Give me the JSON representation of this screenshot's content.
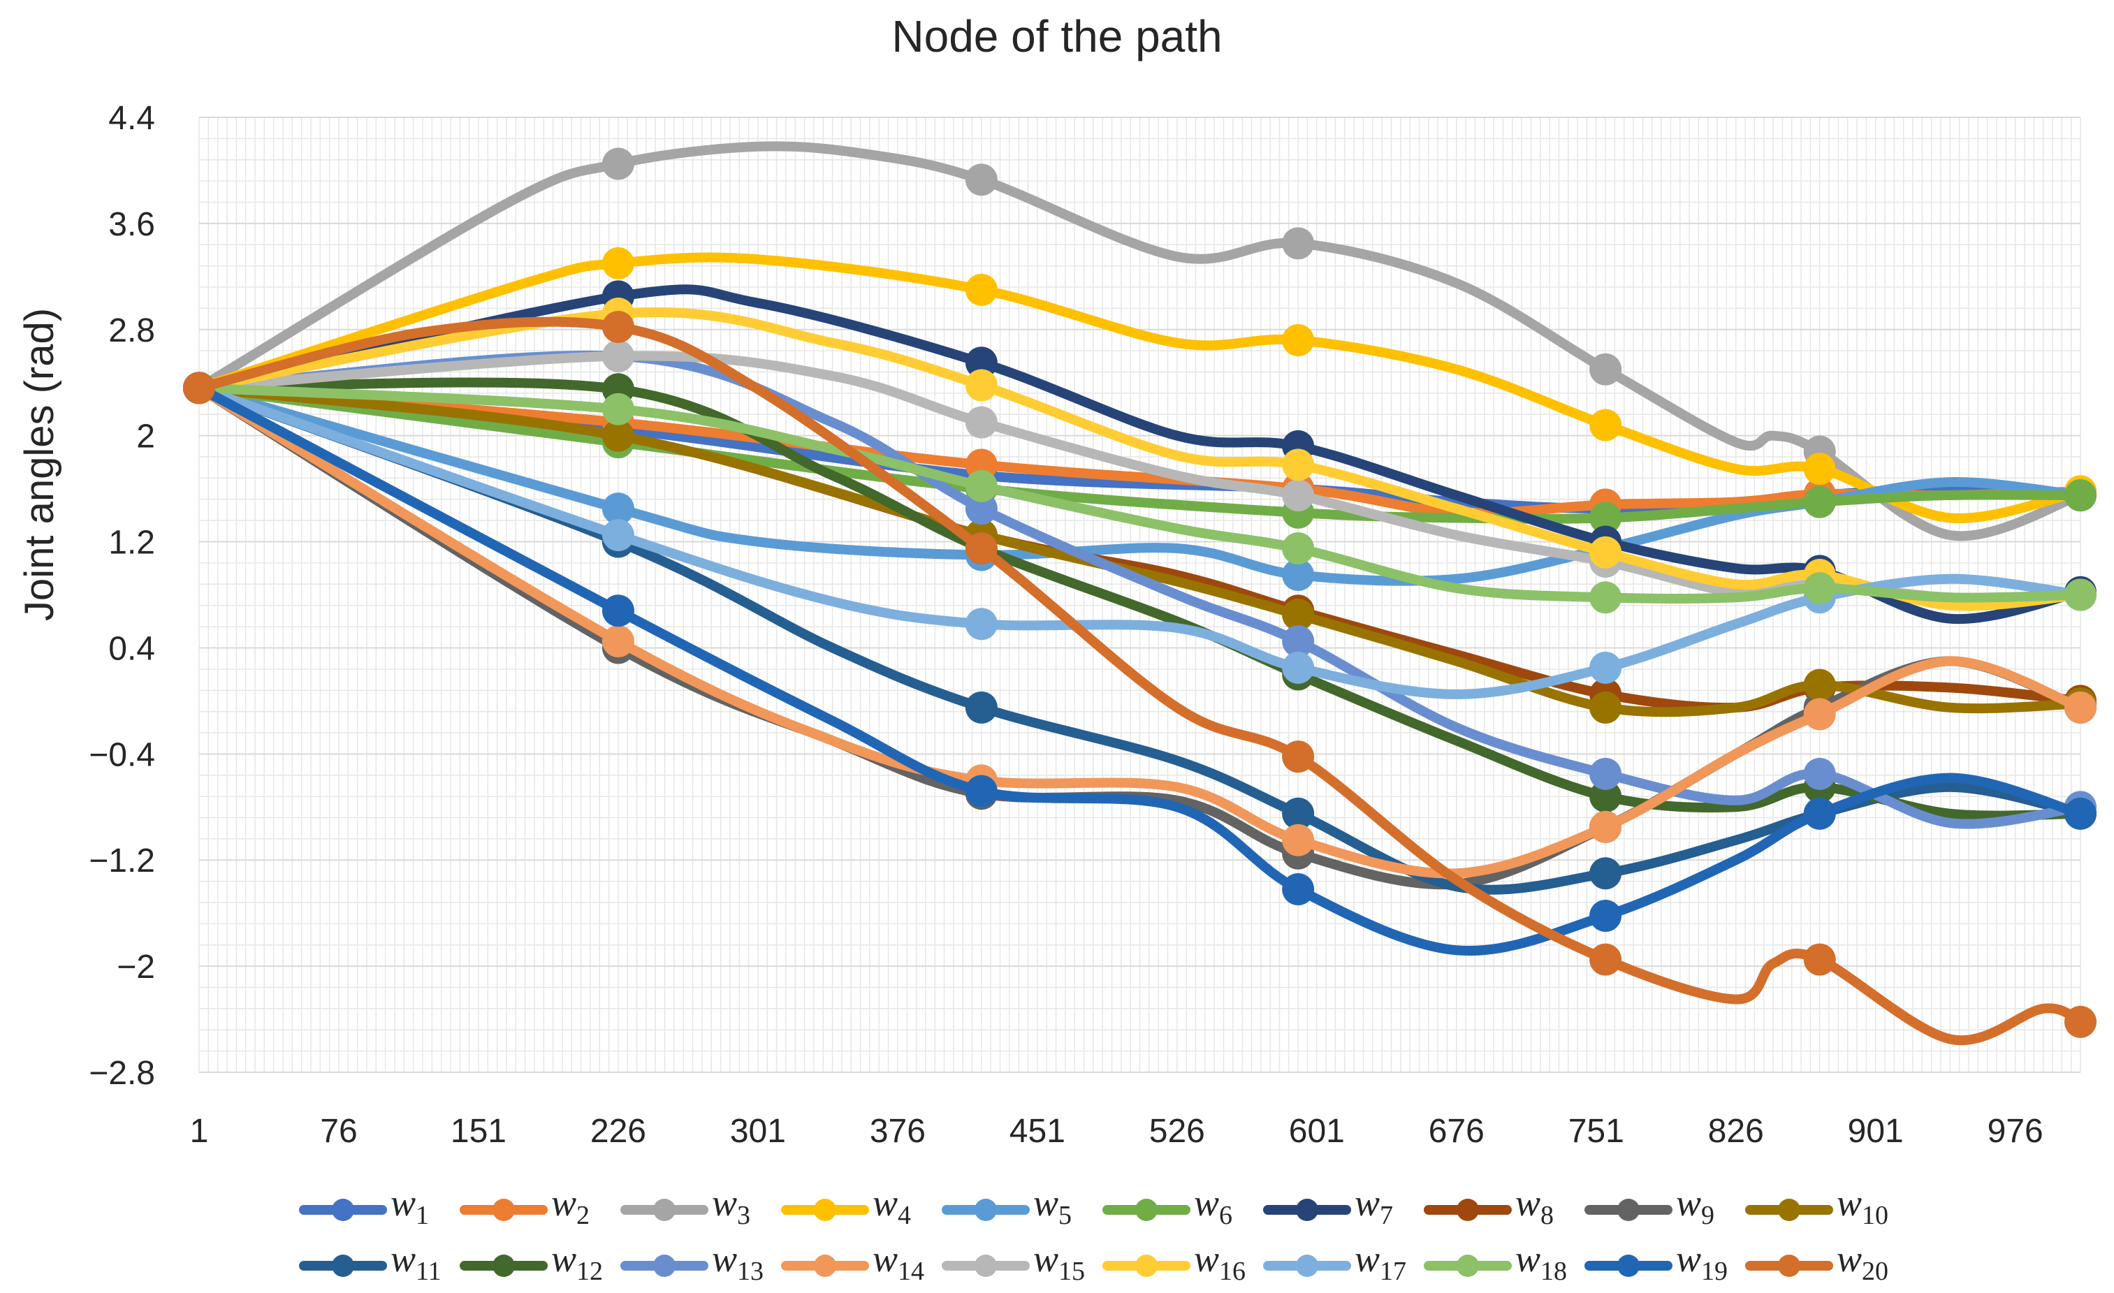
{
  "chart_data": {
    "type": "line",
    "title": "Node of the path",
    "xlabel": "",
    "ylabel": "Joint angles (rad)",
    "ylim": [
      -2.8,
      4.4
    ],
    "yticks": [
      "4.4",
      "3.6",
      "2.8",
      "2",
      "1.2",
      "0.4",
      "−0.4",
      "−1.2",
      "−2",
      "−2.8"
    ],
    "xlim": [
      1,
      1011
    ],
    "xticks": [
      "1",
      "76",
      "151",
      "226",
      "301",
      "376",
      "451",
      "526",
      "601",
      "676",
      "751",
      "826",
      "901",
      "976"
    ],
    "grid": true,
    "legend_position": "bottom",
    "marker_x": [
      1,
      226,
      421,
      591,
      756,
      871,
      1011
    ],
    "series": [
      {
        "name": "w",
        "sub": "1",
        "color": "#4472C4",
        "points": [
          [
            1,
            2.36
          ],
          [
            226,
            2.05
          ],
          [
            421,
            1.7
          ],
          [
            591,
            1.6
          ],
          [
            676,
            1.5
          ],
          [
            756,
            1.45
          ],
          [
            826,
            1.5
          ],
          [
            871,
            1.55
          ],
          [
            936,
            1.6
          ],
          [
            1011,
            1.55
          ]
        ]
      },
      {
        "name": "w",
        "sub": "2",
        "color": "#ED7D31",
        "points": [
          [
            1,
            2.36
          ],
          [
            226,
            2.1
          ],
          [
            421,
            1.78
          ],
          [
            591,
            1.6
          ],
          [
            676,
            1.42
          ],
          [
            756,
            1.48
          ],
          [
            826,
            1.5
          ],
          [
            871,
            1.56
          ],
          [
            936,
            1.55
          ],
          [
            1011,
            1.58
          ]
        ]
      },
      {
        "name": "w",
        "sub": "3",
        "color": "#A5A5A5",
        "points": [
          [
            1,
            2.36
          ],
          [
            166,
            3.75
          ],
          [
            226,
            4.05
          ],
          [
            301,
            4.18
          ],
          [
            361,
            4.12
          ],
          [
            421,
            3.93
          ],
          [
            526,
            3.35
          ],
          [
            591,
            3.45
          ],
          [
            676,
            3.15
          ],
          [
            756,
            2.5
          ],
          [
            826,
            1.95
          ],
          [
            846,
            2.0
          ],
          [
            871,
            1.88
          ],
          [
            941,
            1.25
          ],
          [
            1011,
            1.55
          ]
        ]
      },
      {
        "name": "w",
        "sub": "4",
        "color": "#FFC000",
        "points": [
          [
            1,
            2.36
          ],
          [
            176,
            3.15
          ],
          [
            226,
            3.3
          ],
          [
            301,
            3.33
          ],
          [
            421,
            3.1
          ],
          [
            526,
            2.7
          ],
          [
            591,
            2.72
          ],
          [
            676,
            2.5
          ],
          [
            756,
            2.08
          ],
          [
            826,
            1.75
          ],
          [
            871,
            1.75
          ],
          [
            941,
            1.38
          ],
          [
            1011,
            1.58
          ]
        ]
      },
      {
        "name": "w",
        "sub": "5",
        "color": "#5B9BD5",
        "points": [
          [
            1,
            2.36
          ],
          [
            226,
            1.45
          ],
          [
            301,
            1.2
          ],
          [
            421,
            1.1
          ],
          [
            526,
            1.15
          ],
          [
            591,
            0.95
          ],
          [
            676,
            0.92
          ],
          [
            756,
            1.15
          ],
          [
            826,
            1.4
          ],
          [
            871,
            1.5
          ],
          [
            941,
            1.65
          ],
          [
            1011,
            1.55
          ]
        ]
      },
      {
        "name": "w",
        "sub": "6",
        "color": "#70AD47",
        "points": [
          [
            1,
            2.36
          ],
          [
            226,
            1.95
          ],
          [
            421,
            1.6
          ],
          [
            591,
            1.42
          ],
          [
            676,
            1.38
          ],
          [
            756,
            1.38
          ],
          [
            826,
            1.45
          ],
          [
            871,
            1.5
          ],
          [
            936,
            1.55
          ],
          [
            1011,
            1.55
          ]
        ]
      },
      {
        "name": "w",
        "sub": "7",
        "color": "#264478",
        "points": [
          [
            1,
            2.36
          ],
          [
            226,
            3.05
          ],
          [
            301,
            3.0
          ],
          [
            421,
            2.55
          ],
          [
            526,
            2.0
          ],
          [
            591,
            1.92
          ],
          [
            676,
            1.55
          ],
          [
            756,
            1.2
          ],
          [
            826,
            1.0
          ],
          [
            871,
            0.98
          ],
          [
            941,
            0.62
          ],
          [
            1011,
            0.82
          ]
        ]
      },
      {
        "name": "w",
        "sub": "8",
        "color": "#9E480E",
        "points": [
          [
            1,
            2.36
          ],
          [
            226,
            2.0
          ],
          [
            421,
            1.25
          ],
          [
            526,
            0.95
          ],
          [
            591,
            0.68
          ],
          [
            676,
            0.35
          ],
          [
            756,
            0.05
          ],
          [
            826,
            -0.05
          ],
          [
            871,
            0.1
          ],
          [
            941,
            0.1
          ],
          [
            1011,
            0.0
          ]
        ]
      },
      {
        "name": "w",
        "sub": "9",
        "color": "#636363",
        "points": [
          [
            1,
            2.36
          ],
          [
            226,
            0.4
          ],
          [
            341,
            -0.3
          ],
          [
            421,
            -0.7
          ],
          [
            526,
            -0.75
          ],
          [
            591,
            -1.15
          ],
          [
            676,
            -1.38
          ],
          [
            756,
            -0.95
          ],
          [
            826,
            -0.4
          ],
          [
            871,
            -0.05
          ],
          [
            941,
            0.3
          ],
          [
            1011,
            -0.05
          ]
        ]
      },
      {
        "name": "w",
        "sub": "10",
        "color": "#997300",
        "points": [
          [
            1,
            2.36
          ],
          [
            226,
            2.0
          ],
          [
            421,
            1.25
          ],
          [
            526,
            0.9
          ],
          [
            591,
            0.65
          ],
          [
            676,
            0.3
          ],
          [
            756,
            -0.05
          ],
          [
            826,
            -0.05
          ],
          [
            871,
            0.12
          ],
          [
            941,
            -0.05
          ],
          [
            1011,
            -0.02
          ]
        ]
      },
      {
        "name": "w",
        "sub": "11",
        "color": "#255E91",
        "points": [
          [
            1,
            2.36
          ],
          [
            226,
            1.2
          ],
          [
            341,
            0.4
          ],
          [
            421,
            -0.05
          ],
          [
            526,
            -0.45
          ],
          [
            591,
            -0.85
          ],
          [
            676,
            -1.4
          ],
          [
            756,
            -1.3
          ],
          [
            826,
            -1.05
          ],
          [
            871,
            -0.85
          ],
          [
            941,
            -0.65
          ],
          [
            1011,
            -0.85
          ]
        ]
      },
      {
        "name": "w",
        "sub": "12",
        "color": "#43682B",
        "points": [
          [
            1,
            2.36
          ],
          [
            226,
            2.35
          ],
          [
            341,
            1.7
          ],
          [
            421,
            1.15
          ],
          [
            526,
            0.6
          ],
          [
            591,
            0.2
          ],
          [
            676,
            -0.3
          ],
          [
            756,
            -0.72
          ],
          [
            826,
            -0.8
          ],
          [
            871,
            -0.65
          ],
          [
            941,
            -0.85
          ],
          [
            1011,
            -0.85
          ]
        ]
      },
      {
        "name": "w",
        "sub": "13",
        "color": "#698ED0",
        "points": [
          [
            1,
            2.36
          ],
          [
            226,
            2.6
          ],
          [
            341,
            2.1
          ],
          [
            421,
            1.45
          ],
          [
            526,
            0.8
          ],
          [
            591,
            0.45
          ],
          [
            676,
            -0.2
          ],
          [
            756,
            -0.55
          ],
          [
            826,
            -0.75
          ],
          [
            871,
            -0.55
          ],
          [
            941,
            -0.92
          ],
          [
            1011,
            -0.8
          ]
        ]
      },
      {
        "name": "w",
        "sub": "14",
        "color": "#F1975A",
        "points": [
          [
            1,
            2.36
          ],
          [
            226,
            0.45
          ],
          [
            341,
            -0.3
          ],
          [
            421,
            -0.6
          ],
          [
            526,
            -0.65
          ],
          [
            591,
            -1.05
          ],
          [
            676,
            -1.3
          ],
          [
            756,
            -0.95
          ],
          [
            826,
            -0.4
          ],
          [
            871,
            -0.1
          ],
          [
            941,
            0.3
          ],
          [
            1011,
            -0.05
          ]
        ]
      },
      {
        "name": "w",
        "sub": "15",
        "color": "#B7B7B7",
        "points": [
          [
            1,
            2.36
          ],
          [
            226,
            2.6
          ],
          [
            341,
            2.45
          ],
          [
            421,
            2.1
          ],
          [
            526,
            1.7
          ],
          [
            591,
            1.55
          ],
          [
            676,
            1.25
          ],
          [
            756,
            1.05
          ],
          [
            826,
            0.82
          ],
          [
            871,
            0.88
          ],
          [
            941,
            0.78
          ],
          [
            1011,
            0.8
          ]
        ]
      },
      {
        "name": "w",
        "sub": "16",
        "color": "#FFCD33",
        "points": [
          [
            1,
            2.36
          ],
          [
            226,
            2.92
          ],
          [
            341,
            2.7
          ],
          [
            421,
            2.38
          ],
          [
            526,
            1.85
          ],
          [
            591,
            1.78
          ],
          [
            676,
            1.45
          ],
          [
            756,
            1.12
          ],
          [
            826,
            0.88
          ],
          [
            871,
            0.95
          ],
          [
            941,
            0.72
          ],
          [
            1011,
            0.8
          ]
        ]
      },
      {
        "name": "w",
        "sub": "17",
        "color": "#7CAFDD",
        "points": [
          [
            1,
            2.36
          ],
          [
            226,
            1.25
          ],
          [
            341,
            0.75
          ],
          [
            421,
            0.58
          ],
          [
            526,
            0.55
          ],
          [
            591,
            0.25
          ],
          [
            676,
            0.05
          ],
          [
            756,
            0.25
          ],
          [
            826,
            0.58
          ],
          [
            871,
            0.78
          ],
          [
            941,
            0.92
          ],
          [
            1011,
            0.8
          ]
        ]
      },
      {
        "name": "w",
        "sub": "18",
        "color": "#8CC168",
        "points": [
          [
            1,
            2.36
          ],
          [
            226,
            2.2
          ],
          [
            341,
            1.9
          ],
          [
            421,
            1.62
          ],
          [
            526,
            1.3
          ],
          [
            591,
            1.15
          ],
          [
            676,
            0.85
          ],
          [
            756,
            0.78
          ],
          [
            826,
            0.78
          ],
          [
            871,
            0.85
          ],
          [
            941,
            0.78
          ],
          [
            1011,
            0.8
          ]
        ]
      },
      {
        "name": "w",
        "sub": "19",
        "color": "#2166B5",
        "points": [
          [
            1,
            2.36
          ],
          [
            226,
            0.68
          ],
          [
            341,
            -0.15
          ],
          [
            421,
            -0.68
          ],
          [
            526,
            -0.8
          ],
          [
            591,
            -1.42
          ],
          [
            676,
            -1.88
          ],
          [
            756,
            -1.62
          ],
          [
            826,
            -1.2
          ],
          [
            871,
            -0.85
          ],
          [
            941,
            -0.58
          ],
          [
            1011,
            -0.85
          ]
        ]
      },
      {
        "name": "w",
        "sub": "20",
        "color": "#D46E2B",
        "points": [
          [
            1,
            2.36
          ],
          [
            121,
            2.78
          ],
          [
            226,
            2.82
          ],
          [
            301,
            2.35
          ],
          [
            421,
            1.15
          ],
          [
            526,
            -0.05
          ],
          [
            591,
            -0.42
          ],
          [
            676,
            -1.35
          ],
          [
            756,
            -1.95
          ],
          [
            826,
            -2.25
          ],
          [
            846,
            -1.98
          ],
          [
            871,
            -1.95
          ],
          [
            941,
            -2.55
          ],
          [
            991,
            -2.32
          ],
          [
            1011,
            -2.42
          ]
        ]
      }
    ]
  }
}
